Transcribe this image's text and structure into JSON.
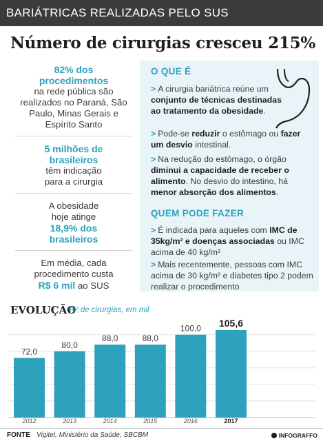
{
  "header": {
    "topbar": "BARIÁTRICAS REALIZADAS PELO SUS",
    "headline": "Número de cirurgias cresceu",
    "headline_pct": "215%"
  },
  "left": {
    "s1_hl": "82% dos procedimentos",
    "s1_rest": "na rede pública são realizados no Paraná, São Paulo, Minas Gerais e Espírito Santo",
    "s2_hl": "5 milhões de brasileiros",
    "s2_rest": "têm indicação para a cirurgia",
    "s3_pre": "A obesidade hoje atinge",
    "s3_hl": "18,9% dos brasileiros",
    "s4_pre": "Em média, cada procedimento custa",
    "s4_hl": "R$ 6 mil",
    "s4_post": "ao SUS"
  },
  "panel": {
    "o_que_e_title": "O QUE É",
    "i1_a": "A cirurgia bariátrica reúne um",
    "i1_b": "conjunto de técnicas destinadas ao tratamento da obesidade",
    "i1_c": ".",
    "i2_a": "Pode-se",
    "i2_b": "reduzir",
    "i2_c": "o estômago ou",
    "i2_d": "fazer um desvio",
    "i2_e": "intestinal.",
    "i3_a": "Na redução do estômago, o órgão",
    "i3_b": "diminui a capacidade de receber o alimento",
    "i3_c": ". No desvio do intestino, há",
    "i3_d": "menor absorção dos alimentos",
    "i3_e": ".",
    "quem_title": "QUEM PODE FAZER",
    "i4_a": "É indicada para aqueles com",
    "i4_b": "IMC de 35kg/m² e doenças associadas",
    "i4_c": "ou IMC acima de 40 kg/m²",
    "i5_a": "Mais recentemente, pessoas com IMC acima de 30 kg/m² e diabetes tipo 2 podem realizar o procedimento"
  },
  "evolution": {
    "title": "EVOLUÇÃO",
    "subtitle": "Nº de cirurgias, em mil"
  },
  "chart_data": {
    "type": "bar",
    "categories": [
      "2012",
      "2013",
      "2014",
      "2015",
      "2016",
      "2017"
    ],
    "values": [
      72.0,
      80.0,
      88.0,
      88.0,
      100.0,
      105.6
    ],
    "value_labels": [
      "72,0",
      "80,0",
      "88,0",
      "88,0",
      "100,0",
      "105,6"
    ],
    "highlight_last": true,
    "bar_color": "#2ea1bd",
    "grid": true
  },
  "footer": {
    "fonte_label": "FONTE",
    "fonte_text": "Vigitel, Ministério da Saúde, SBCBM",
    "brand": "INFOGRAFFO"
  },
  "colors": {
    "accent": "#2ea1bd",
    "dark": "#3b3b3b",
    "panel_bg": "#e9f4f8"
  }
}
